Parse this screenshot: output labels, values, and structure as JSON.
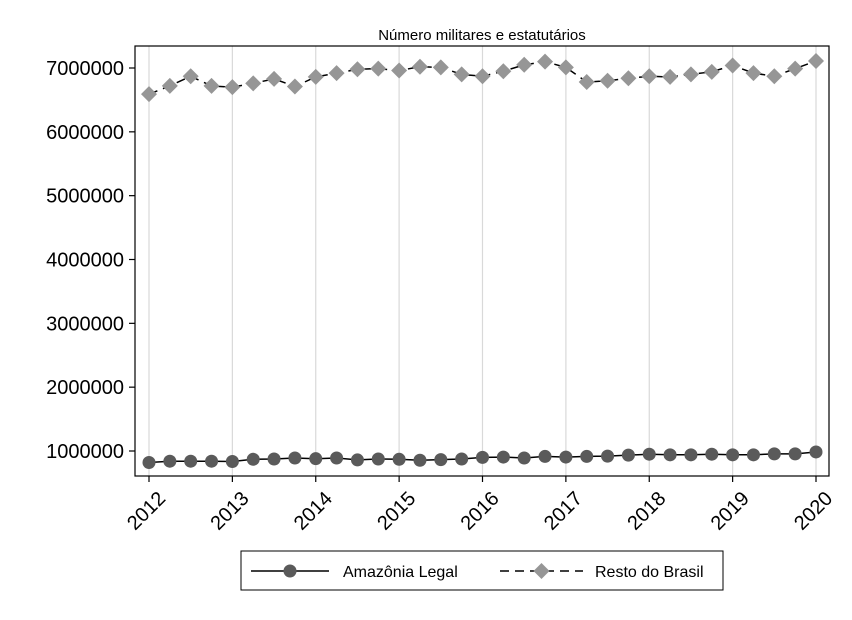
{
  "chart_data": {
    "type": "line",
    "title": "Número militares e estatutários",
    "xlabel": "",
    "ylabel": "",
    "x_tick_labels": [
      "2012",
      "2013",
      "2014",
      "2015",
      "2016",
      "2017",
      "2018",
      "2019",
      "2020"
    ],
    "y_tick_labels": [
      "1000000",
      "2000000",
      "3000000",
      "4000000",
      "5000000",
      "6000000",
      "7000000"
    ],
    "y_ticks": [
      1000000,
      2000000,
      3000000,
      4000000,
      5000000,
      6000000,
      7000000
    ],
    "xlim": [
      2012,
      2020
    ],
    "ylim": [
      640000,
      7300000
    ],
    "grid": "vertical lines at years",
    "legend_position": "bottom",
    "x": [
      2012,
      2012.25,
      2012.5,
      2012.75,
      2013,
      2013.25,
      2013.5,
      2013.75,
      2014,
      2014.25,
      2014.5,
      2014.75,
      2015,
      2015.25,
      2015.5,
      2015.75,
      2016,
      2016.25,
      2016.5,
      2016.75,
      2017,
      2017.25,
      2017.5,
      2017.75,
      2018,
      2018.25,
      2018.5,
      2018.75,
      2019,
      2019.25,
      2019.5,
      2019.75,
      2020
    ],
    "series": [
      {
        "name": "Amazônia Legal",
        "color": "#5a5a5a",
        "line": "solid",
        "marker": "circle",
        "values": [
          820000,
          840000,
          840000,
          840000,
          835000,
          870000,
          875000,
          890000,
          880000,
          890000,
          860000,
          875000,
          870000,
          855000,
          865000,
          875000,
          900000,
          905000,
          890000,
          915000,
          905000,
          915000,
          920000,
          935000,
          950000,
          940000,
          940000,
          950000,
          940000,
          940000,
          955000,
          955000,
          985000
        ]
      },
      {
        "name": "Resto do Brasil",
        "color": "#969696",
        "line": "dashed",
        "marker": "diamond",
        "values": [
          6590000,
          6720000,
          6870000,
          6720000,
          6700000,
          6760000,
          6830000,
          6710000,
          6860000,
          6920000,
          6980000,
          6990000,
          6960000,
          7020000,
          7010000,
          6900000,
          6870000,
          6950000,
          7050000,
          7100000,
          7010000,
          6780000,
          6800000,
          6840000,
          6870000,
          6860000,
          6900000,
          6940000,
          7040000,
          6920000,
          6870000,
          6990000,
          7110000
        ]
      }
    ]
  }
}
